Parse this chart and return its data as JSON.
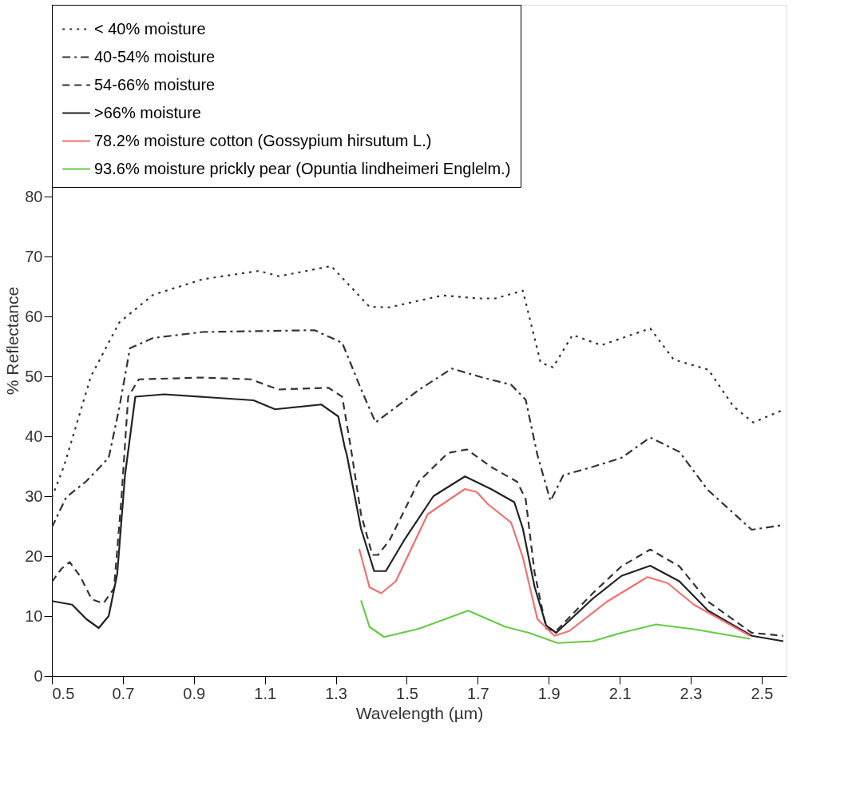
{
  "chart_data": {
    "type": "line",
    "xlabel": "Wavelength (µm)",
    "ylabel": "% Reflectance",
    "xlim": [
      0.5,
      2.57
    ],
    "ylim": [
      0,
      112
    ],
    "xticks": [
      0.5,
      0.7,
      0.9,
      1.1,
      1.3,
      1.5,
      1.7,
      1.9,
      2.1,
      2.3,
      2.5
    ],
    "yticks": [
      0,
      10,
      20,
      30,
      40,
      50,
      60,
      70,
      80
    ],
    "grid": false,
    "legend": "top left",
    "marker": "none",
    "series": [
      {
        "name": "< 40% moisture",
        "color": "#333333",
        "line_style": "dotted",
        "x": [
          0.5,
          0.534,
          0.61,
          0.69,
          0.785,
          0.925,
          1.083,
          1.14,
          1.287,
          1.395,
          1.45,
          1.6,
          1.7,
          1.75,
          1.827,
          1.877,
          1.912,
          1.967,
          2.048,
          2.186,
          2.252,
          2.35,
          2.42,
          2.476,
          2.56
        ],
        "values": [
          29.8,
          35,
          50,
          59,
          63.6,
          66.2,
          67.6,
          66.7,
          68.4,
          61.6,
          61.5,
          63.5,
          63,
          63,
          64.3,
          52.3,
          51.5,
          56.9,
          55.2,
          58,
          52.8,
          51.1,
          45,
          42.3,
          44.4
        ]
      },
      {
        "name": "40-54% moisture",
        "color": "#333333",
        "line_style": "dashdot",
        "x": [
          0.5,
          0.54,
          0.597,
          0.66,
          0.69,
          0.72,
          0.785,
          0.925,
          1.24,
          1.318,
          1.373,
          1.412,
          1.533,
          1.627,
          1.713,
          1.794,
          1.835,
          1.868,
          1.905,
          1.941,
          2.024,
          2.105,
          2.186,
          2.268,
          2.349,
          2.472,
          2.561
        ],
        "values": [
          24.8,
          29.8,
          32.5,
          36.4,
          44.8,
          54.7,
          56.4,
          57.4,
          57.7,
          55.6,
          47.6,
          42.3,
          47.7,
          51.3,
          49.8,
          48.6,
          46.1,
          36.9,
          29.2,
          33.5,
          34.9,
          36.4,
          39.8,
          37.4,
          31,
          24.4,
          25.2
        ]
      },
      {
        "name": "54-66% moisture",
        "color": "#333333",
        "line_style": "dashed",
        "x": [
          0.5,
          0.527,
          0.55,
          0.58,
          0.612,
          0.645,
          0.675,
          0.695,
          0.715,
          0.745,
          0.925,
          1.06,
          1.138,
          1.279,
          1.318,
          1.342,
          1.371,
          1.403,
          1.419,
          1.452,
          1.533,
          1.616,
          1.669,
          1.737,
          1.811,
          1.835,
          1.86,
          1.893,
          1.921,
          2.024,
          2.105,
          2.186,
          2.268,
          2.349,
          2.472,
          2.561
        ],
        "values": [
          15.7,
          17.9,
          19,
          16.6,
          12.8,
          12.1,
          14.6,
          28.9,
          46.6,
          49.5,
          49.8,
          49.5,
          47.8,
          48.1,
          46.6,
          38.2,
          27,
          20.2,
          20.2,
          22.7,
          32.4,
          37.2,
          37.8,
          34.9,
          32.4,
          29.5,
          17.3,
          7.9,
          7.5,
          13.8,
          18.3,
          21.1,
          18.3,
          12.4,
          7.2,
          6.7
        ]
      },
      {
        "name": ">66% moisture",
        "color": "#222222",
        "line_style": "solid",
        "x": [
          0.5,
          0.557,
          0.597,
          0.632,
          0.66,
          0.684,
          0.706,
          0.735,
          0.816,
          1.068,
          1.129,
          1.259,
          1.307,
          1.325,
          1.331,
          1.371,
          1.408,
          1.441,
          1.493,
          1.575,
          1.664,
          1.737,
          1.803,
          1.827,
          1.86,
          1.893,
          1.921,
          2.024,
          2.105,
          2.186,
          2.268,
          2.349,
          2.472,
          2.561
        ],
        "values": [
          12.5,
          11.9,
          9.5,
          8,
          10,
          17,
          33.5,
          46.6,
          47,
          46,
          44.5,
          45.3,
          43.3,
          38.2,
          36.9,
          24.6,
          17.5,
          17.5,
          22.7,
          30,
          33.3,
          31.2,
          29,
          24.6,
          14.9,
          8.4,
          7.2,
          12.9,
          16.7,
          18.4,
          15.8,
          10.9,
          6.7,
          5.8
        ]
      },
      {
        "name": "78.2% moisture cotton (Gossypium hirsutum L.)",
        "color": "#f07070",
        "line_style": "solid",
        "x": [
          1.366,
          1.395,
          1.428,
          1.469,
          1.559,
          1.664,
          1.697,
          1.73,
          1.794,
          1.827,
          1.868,
          1.916,
          1.958,
          2.064,
          2.178,
          2.235,
          2.309,
          2.467
        ],
        "values": [
          21.2,
          14.8,
          13.8,
          15.8,
          27,
          31.2,
          30.7,
          28.6,
          25.6,
          19.8,
          9.5,
          6.7,
          7.5,
          12.4,
          16.5,
          15.5,
          11.9,
          6.7
        ]
      },
      {
        "name": "93.6% moisture prickly pear (Opuntia lindheimeri Englelm.)",
        "color": "#66cc44",
        "line_style": "solid",
        "x": [
          1.371,
          1.395,
          1.436,
          1.535,
          1.673,
          1.778,
          1.844,
          1.925,
          2.024,
          2.105,
          2.202,
          2.309,
          2.467
        ],
        "values": [
          12.6,
          8.2,
          6.5,
          7.9,
          10.9,
          8.2,
          7.2,
          5.5,
          5.8,
          7.2,
          8.6,
          7.8,
          6.2
        ]
      }
    ]
  }
}
